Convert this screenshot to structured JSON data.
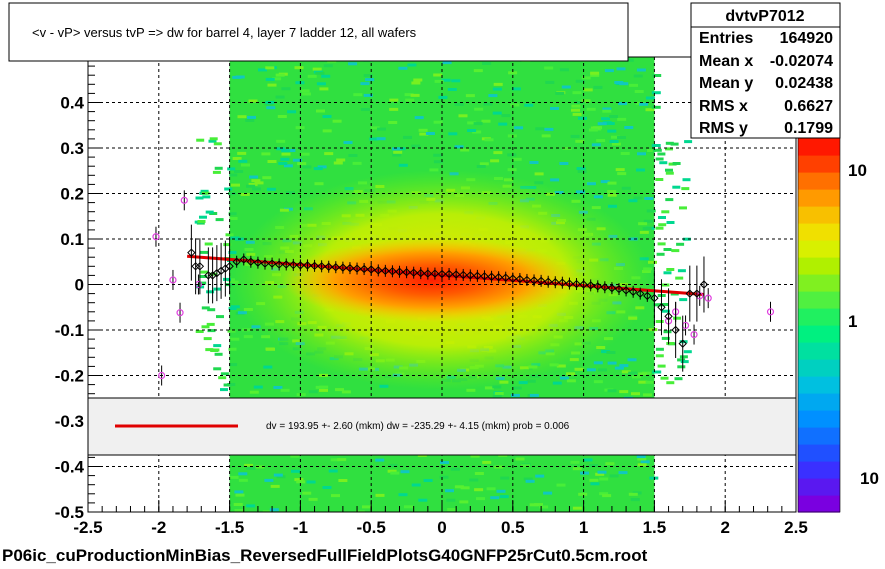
{
  "title": "<v - vP>       versus  tvP =>  dw for barrel 4, layer 7 ladder 12, all wafers",
  "footer": "P06ic_cuProductionMinBias_ReversedFullFieldPlotsG40GNFP25rCut0.5cm.root",
  "stats": {
    "name": "dvtvP7012",
    "rows": [
      {
        "label": "Entries",
        "value": "164920"
      },
      {
        "label": "Mean x",
        "value": "-0.02074"
      },
      {
        "label": "Mean y",
        "value": "0.02438"
      },
      {
        "label": "RMS x",
        "value": "0.6627"
      },
      {
        "label": "RMS y",
        "value": "0.1799"
      }
    ]
  },
  "fit_legend": {
    "text": "dv =  193.95 +-  2.60 (mkm) dw = -235.29 +-  4.15 (mkm) prob = 0.006",
    "line_color": "#e00000"
  },
  "colorbar": {
    "labels": [
      "10",
      "1",
      "10"
    ],
    "colors": [
      "#7a00e0",
      "#5a18f0",
      "#3a30ff",
      "#2050ff",
      "#1070ff",
      "#0090ff",
      "#00a8f0",
      "#00c0e0",
      "#00d0c0",
      "#00e0a0",
      "#00f080",
      "#20f060",
      "#50f040",
      "#80f020",
      "#b0f000",
      "#d8f000",
      "#f0e000",
      "#f8c000",
      "#ff9a00",
      "#ff7000",
      "#ff4000",
      "#ff1800"
    ]
  },
  "chart_data": {
    "type": "scatter",
    "title": "<v - vP>       versus  tvP =>  dw for barrel 4, layer 7 ladder 12, all wafers",
    "xlabel": "",
    "ylabel": "",
    "xlim": [
      -2.5,
      2.5
    ],
    "ylim": [
      -0.5,
      0.5
    ],
    "x_ticks": [
      -2.5,
      -2,
      -1.5,
      -1,
      -0.5,
      0,
      0.5,
      1,
      1.5,
      2,
      2.5
    ],
    "x_tick_labels": [
      "-2.5",
      "-2",
      "-1.5",
      "-1",
      "-0.5",
      "0",
      "0.5",
      "1",
      "1.5",
      "2",
      "2.5"
    ],
    "y_ticks": [
      -0.5,
      -0.4,
      -0.3,
      -0.2,
      -0.1,
      0,
      0.1,
      0.2,
      0.3,
      0.4
    ],
    "y_tick_labels": [
      "-0.5",
      "-0.4",
      "-0.3",
      "-0.2",
      "-0.1",
      "0",
      "0.1",
      "0.2",
      "0.3",
      "0.4"
    ],
    "grid": true,
    "density_x_range": [
      -1.5,
      1.5
    ],
    "fit_line": {
      "x": [
        -1.8,
        1.85
      ],
      "y": [
        0.062,
        -0.022
      ],
      "color": "#e00000"
    },
    "profile_mean": {
      "x": [
        -1.77,
        -1.74,
        -1.71,
        -1.65,
        -1.62,
        -1.59,
        -1.56,
        -1.53,
        -1.5,
        -1.45,
        -1.4,
        -1.35,
        -1.3,
        -1.25,
        -1.2,
        -1.15,
        -1.1,
        -1.05,
        -1.0,
        -0.95,
        -0.9,
        -0.85,
        -0.8,
        -0.75,
        -0.7,
        -0.65,
        -0.6,
        -0.55,
        -0.5,
        -0.45,
        -0.4,
        -0.35,
        -0.3,
        -0.25,
        -0.2,
        -0.15,
        -0.1,
        -0.05,
        0.0,
        0.05,
        0.1,
        0.15,
        0.2,
        0.25,
        0.3,
        0.35,
        0.4,
        0.45,
        0.5,
        0.55,
        0.6,
        0.65,
        0.7,
        0.75,
        0.8,
        0.85,
        0.9,
        0.95,
        1.0,
        1.05,
        1.1,
        1.15,
        1.2,
        1.25,
        1.3,
        1.35,
        1.4,
        1.45,
        1.5,
        1.55,
        1.6,
        1.65,
        1.7,
        1.75,
        1.8,
        1.85
      ],
      "y": [
        0.07,
        0.04,
        0.04,
        0.02,
        0.02,
        0.025,
        0.03,
        0.035,
        0.04,
        0.05,
        0.055,
        0.05,
        0.048,
        0.046,
        0.046,
        0.044,
        0.044,
        0.043,
        0.042,
        0.042,
        0.041,
        0.04,
        0.039,
        0.038,
        0.037,
        0.036,
        0.035,
        0.034,
        0.033,
        0.031,
        0.03,
        0.029,
        0.028,
        0.027,
        0.026,
        0.025,
        0.024,
        0.024,
        0.023,
        0.023,
        0.022,
        0.021,
        0.02,
        0.019,
        0.018,
        0.017,
        0.016,
        0.015,
        0.013,
        0.012,
        0.01,
        0.009,
        0.008,
        0.006,
        0.005,
        0.004,
        0.002,
        0.001,
        0.0,
        -0.002,
        -0.004,
        -0.006,
        -0.008,
        -0.01,
        -0.013,
        -0.016,
        -0.02,
        -0.025,
        -0.03,
        -0.05,
        -0.07,
        -0.1,
        -0.13,
        -0.02,
        -0.02,
        0.0
      ]
    },
    "profile_other": {
      "x": [
        -2.02,
        -1.98,
        -1.9,
        -1.85,
        -1.82,
        -1.72,
        1.6,
        1.65,
        1.72,
        1.78,
        1.82,
        1.88,
        2.32
      ],
      "y": [
        0.105,
        -0.2,
        0.01,
        -0.062,
        0.185,
        0.0,
        -0.08,
        -0.06,
        -0.09,
        -0.11,
        -0.025,
        -0.03,
        -0.06
      ]
    }
  }
}
